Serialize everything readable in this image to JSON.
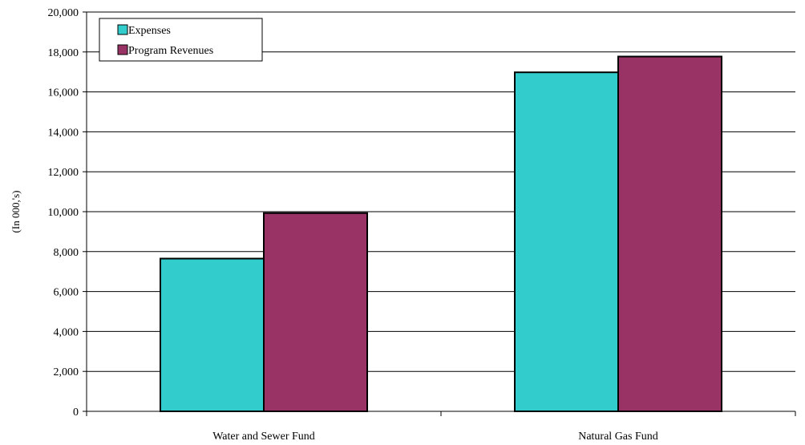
{
  "chart_data": {
    "type": "bar",
    "title": "",
    "xlabel": "",
    "ylabel": "(In 000,'s)",
    "categories": [
      "Water and Sewer Fund",
      "Natural Gas Fund"
    ],
    "series": [
      {
        "name": "Expenses",
        "values": [
          7650,
          16980
        ],
        "color": "#33CCCC"
      },
      {
        "name": "Program Revenues",
        "values": [
          9930,
          17770
        ],
        "color": "#993366"
      }
    ],
    "ylim": [
      0,
      20000
    ],
    "yticks": [
      0,
      2000,
      4000,
      6000,
      8000,
      10000,
      12000,
      14000,
      16000,
      18000,
      20000
    ],
    "ytick_labels": [
      "0",
      "2,000",
      "4,000",
      "6,000",
      "8,000",
      "10,000",
      "12,000",
      "14,000",
      "16,000",
      "18,000",
      "20,000"
    ],
    "grid": "horizontal",
    "legend_position": "top-left"
  }
}
